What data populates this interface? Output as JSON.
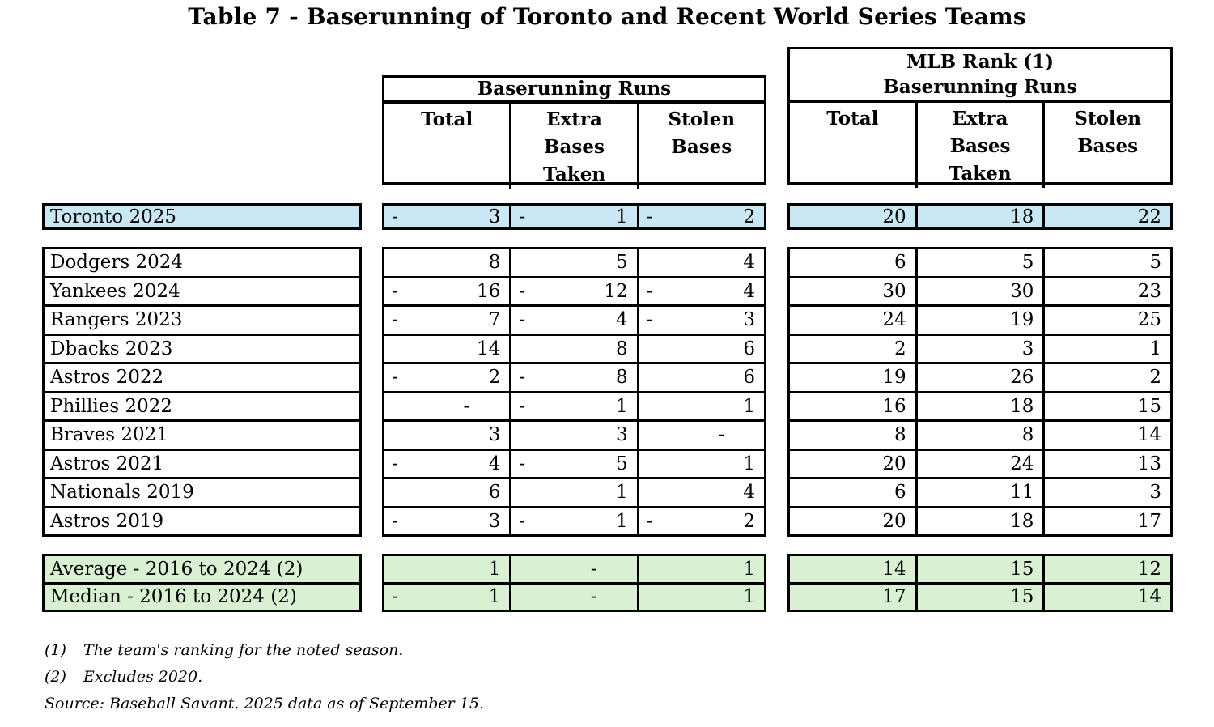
{
  "title": "Table 7 - Baserunning of Toronto and Recent World Series Teams",
  "header": {
    "left_group_label": "Baserunning Runs",
    "right_group_label": "MLB Rank (1)\nBaserunning Runs",
    "columns": [
      "Total",
      "Extra\nBases\nTaken",
      "Stolen\nBases"
    ]
  },
  "toronto_rows": [
    {
      "team": "Toronto 2025",
      "brr": [
        {
          "s": "-",
          "n": "3"
        },
        {
          "s": "-",
          "n": "1"
        },
        {
          "s": "-",
          "n": "2"
        }
      ],
      "rank": [
        20,
        18,
        22
      ]
    }
  ],
  "team_rows": [
    {
      "team": "Dodgers 2024",
      "brr": [
        {
          "s": "",
          "n": "8"
        },
        {
          "s": "",
          "n": "5"
        },
        {
          "s": "",
          "n": "4"
        }
      ],
      "rank": [
        6,
        5,
        5
      ]
    },
    {
      "team": "Yankees 2024",
      "brr": [
        {
          "s": "-",
          "n": "16"
        },
        {
          "s": "-",
          "n": "12"
        },
        {
          "s": "-",
          "n": "4"
        }
      ],
      "rank": [
        30,
        30,
        23
      ]
    },
    {
      "team": "Rangers 2023",
      "brr": [
        {
          "s": "-",
          "n": "7"
        },
        {
          "s": "-",
          "n": "4"
        },
        {
          "s": "-",
          "n": "3"
        }
      ],
      "rank": [
        24,
        19,
        25
      ]
    },
    {
      "team": "Dbacks 2023",
      "brr": [
        {
          "s": "",
          "n": "14"
        },
        {
          "s": "",
          "n": "8"
        },
        {
          "s": "",
          "n": "6"
        }
      ],
      "rank": [
        2,
        3,
        1
      ]
    },
    {
      "team": "Astros 2022",
      "brr": [
        {
          "s": "-",
          "n": "2"
        },
        {
          "s": "-",
          "n": "8"
        },
        {
          "s": "",
          "n": "6"
        }
      ],
      "rank": [
        19,
        26,
        2
      ]
    },
    {
      "team": "Phillies 2022",
      "brr": [
        {
          "s": "",
          "n": "-"
        },
        {
          "s": "-",
          "n": "1"
        },
        {
          "s": "",
          "n": "1"
        }
      ],
      "rank": [
        16,
        18,
        15
      ]
    },
    {
      "team": "Braves 2021",
      "brr": [
        {
          "s": "",
          "n": "3"
        },
        {
          "s": "",
          "n": "3"
        },
        {
          "s": "",
          "n": "-"
        }
      ],
      "rank": [
        8,
        8,
        14
      ]
    },
    {
      "team": "Astros 2021",
      "brr": [
        {
          "s": "-",
          "n": "4"
        },
        {
          "s": "-",
          "n": "5"
        },
        {
          "s": "",
          "n": "1"
        }
      ],
      "rank": [
        20,
        24,
        13
      ]
    },
    {
      "team": "Nationals 2019",
      "brr": [
        {
          "s": "",
          "n": "6"
        },
        {
          "s": "",
          "n": "1"
        },
        {
          "s": "",
          "n": "4"
        }
      ],
      "rank": [
        6,
        11,
        3
      ]
    },
    {
      "team": "Astros 2019",
      "brr": [
        {
          "s": "-",
          "n": "3"
        },
        {
          "s": "-",
          "n": "1"
        },
        {
          "s": "-",
          "n": "2"
        }
      ],
      "rank": [
        20,
        18,
        17
      ]
    }
  ],
  "summary_rows": [
    {
      "team": "Average - 2016 to 2024 (2)",
      "brr": [
        {
          "s": "",
          "n": "1"
        },
        {
          "s": "",
          "n": "-"
        },
        {
          "s": "",
          "n": "1"
        }
      ],
      "rank": [
        14,
        15,
        12
      ]
    },
    {
      "team": "Median - 2016 to 2024 (2)",
      "brr": [
        {
          "s": "-",
          "n": "1"
        },
        {
          "s": "",
          "n": "-"
        },
        {
          "s": "",
          "n": "1"
        }
      ],
      "rank": [
        17,
        15,
        14
      ]
    }
  ],
  "footnotes": [
    {
      "marker": "(1)",
      "text": "The team's ranking for the noted season."
    },
    {
      "marker": "(2)",
      "text": "Excludes 2020."
    }
  ],
  "source": "Source: Baseball Savant. 2025 data as of September 15.",
  "colors": {
    "toronto_highlight": "#C9E7F5",
    "summary_highlight": "#D9F0D3",
    "border": "#000000"
  }
}
